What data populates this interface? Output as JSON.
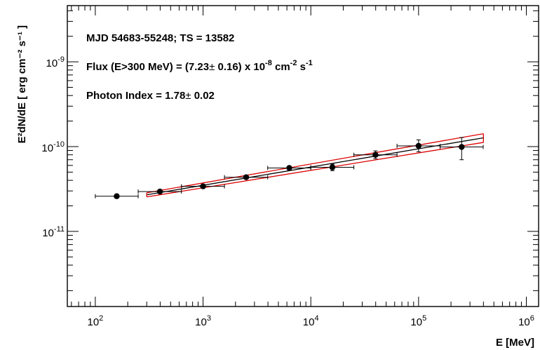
{
  "chart_data": {
    "type": "scatter",
    "title": "",
    "xlabel": "E [MeV]",
    "ylabel": "E²dN/dE [ erg cm⁻² s⁻¹ ]",
    "xscale": "log",
    "yscale": "log",
    "xlim": [
      55,
      1300000
    ],
    "ylim": [
      1.3e-12,
      4.6e-09
    ],
    "x_major_ticks": [
      100,
      1000,
      10000,
      100000,
      1000000
    ],
    "x_tick_labels": [
      {
        "base": "10",
        "exp": "2"
      },
      {
        "base": "10",
        "exp": "3"
      },
      {
        "base": "10",
        "exp": "4"
      },
      {
        "base": "10",
        "exp": "5"
      },
      {
        "base": "10",
        "exp": "6"
      }
    ],
    "y_major_ticks": [
      1e-11,
      1e-10,
      1e-09
    ],
    "y_tick_labels": [
      {
        "base": "10",
        "exp": "-11"
      },
      {
        "base": "10",
        "exp": "-10"
      },
      {
        "base": "10",
        "exp": "-9"
      }
    ],
    "grid": false,
    "annotations": [
      {
        "parts": [
          {
            "t": "MJD 54683-55248;  TS = 13582"
          }
        ]
      },
      {
        "parts": [
          {
            "t": "Flux (E>300 MeV) = (7.23"
          },
          {
            "t": "±",
            "plain": true
          },
          {
            "t": " 0.16) x 10"
          },
          {
            "t": "-8",
            "sup": true
          },
          {
            "t": " cm"
          },
          {
            "t": "-2",
            "sup": true
          },
          {
            "t": " s"
          },
          {
            "t": "-1",
            "sup": true
          }
        ]
      },
      {
        "parts": [
          {
            "t": "Photon Index = 1.78"
          },
          {
            "t": "±",
            "plain": true
          },
          {
            "t": " 0.02"
          }
        ]
      }
    ],
    "series": [
      {
        "points": [
          {
            "x": 158,
            "xlo": 100,
            "xhi": 250,
            "y": 2.6e-11,
            "ylo": 2.55e-11,
            "yhi": 2.65e-11
          },
          {
            "x": 398,
            "xlo": 250,
            "xhi": 630,
            "y": 2.95e-11,
            "ylo": 2.88e-11,
            "yhi": 3.02e-11
          },
          {
            "x": 1000,
            "xlo": 630,
            "xhi": 1580,
            "y": 3.4e-11,
            "ylo": 3.32e-11,
            "yhi": 3.48e-11
          },
          {
            "x": 2512,
            "xlo": 1580,
            "xhi": 3980,
            "y": 4.35e-11,
            "ylo": 4.2e-11,
            "yhi": 4.5e-11
          },
          {
            "x": 6310,
            "xlo": 3980,
            "xhi": 10000,
            "y": 5.6e-11,
            "ylo": 5.35e-11,
            "yhi": 5.85e-11
          },
          {
            "x": 15850,
            "xlo": 10000,
            "xhi": 25100,
            "y": 5.7e-11,
            "ylo": 5.2e-11,
            "yhi": 6.2e-11
          },
          {
            "x": 39810,
            "xlo": 25100,
            "xhi": 63100,
            "y": 8e-11,
            "ylo": 7.2e-11,
            "yhi": 8.9e-11
          },
          {
            "x": 100000,
            "xlo": 63100,
            "xhi": 158500,
            "y": 1.02e-10,
            "ylo": 8.7e-11,
            "yhi": 1.2e-10
          },
          {
            "x": 251200,
            "xlo": 158500,
            "xhi": 398000,
            "y": 9.9e-11,
            "ylo": 7e-11,
            "yhi": 1.28e-10
          }
        ]
      }
    ],
    "fit": {
      "color": "#000000",
      "band_color": "#dd0000",
      "x_range": [
        300,
        400000
      ],
      "central": [
        2.7e-11,
        1.27e-10
      ],
      "upper": [
        2.85e-11,
        1.42e-10
      ],
      "lower": [
        2.55e-11,
        1.12e-10
      ]
    }
  }
}
